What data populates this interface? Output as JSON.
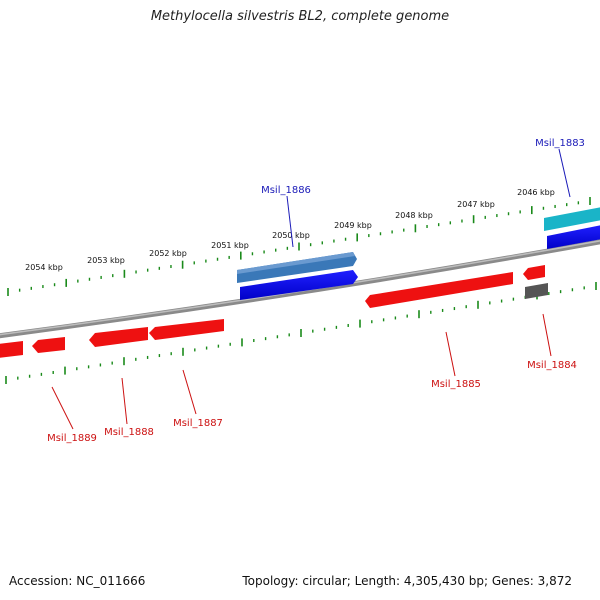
{
  "title": "Methylocella silvestris BL2, complete genome",
  "footer": {
    "accession": "Accession: NC_011666",
    "summary": "Topology: circular; Length: 4,305,430 bp; Genes: 3,872"
  },
  "colors": {
    "backbone": "#8a8a8a",
    "tick": "#1a8a1a",
    "forward_label": "#1a1ab8",
    "reverse_label": "#cc1111"
  },
  "kbp_labels": [
    "2054 kbp",
    "2053 kbp",
    "2052 kbp",
    "2051 kbp",
    "2050 kbp",
    "2049 kbp",
    "2048 kbp",
    "2047 kbp",
    "2046 kbp"
  ],
  "genes": [
    {
      "id": "Msil_1883",
      "strand": "+",
      "color": "#1ab4c8"
    },
    {
      "id": "Msil_1884",
      "strand": "-",
      "color": "#555555"
    },
    {
      "id": "Msil_1885",
      "strand": "-",
      "color": "#ee1111"
    },
    {
      "id": "Msil_1886",
      "strand": "+",
      "color": "#3a78b8"
    },
    {
      "id": "Msil_1887",
      "strand": "-",
      "color": "#ee1111"
    },
    {
      "id": "Msil_1888",
      "strand": "-",
      "color": "#ee1111"
    },
    {
      "id": "Msil_1889",
      "strand": "-",
      "color": "#ee1111"
    }
  ]
}
